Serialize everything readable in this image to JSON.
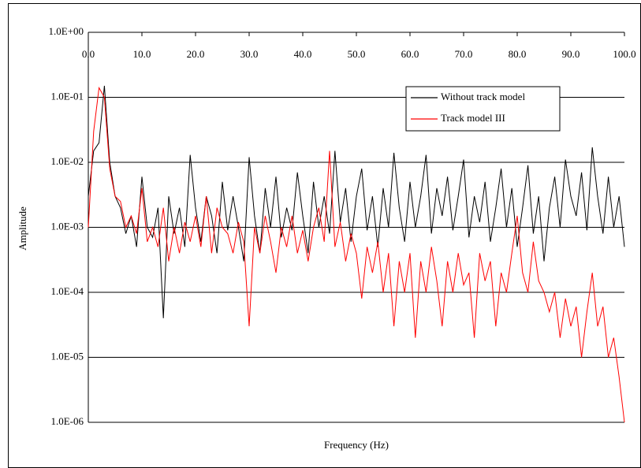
{
  "chart_data": {
    "type": "line",
    "x_label": "Frequency (Hz)",
    "y_label": "Amplitude",
    "y_scale": "log",
    "grid": true,
    "legend": "upper right",
    "xlim": [
      0,
      100
    ],
    "xticks": [
      {
        "value": 0,
        "label": "0.0"
      },
      {
        "value": 10,
        "label": "10.0"
      },
      {
        "value": 20,
        "label": "20.0"
      },
      {
        "value": 30,
        "label": "30.0"
      },
      {
        "value": 40,
        "label": "40.0"
      },
      {
        "value": 50,
        "label": "50.0"
      },
      {
        "value": 60,
        "label": "60.0"
      },
      {
        "value": 70,
        "label": "70.0"
      },
      {
        "value": 80,
        "label": "80.0"
      },
      {
        "value": 90,
        "label": "90.0"
      },
      {
        "value": 100,
        "label": "100.0"
      }
    ],
    "ylim": [
      1e-06,
      1
    ],
    "yticks": [
      {
        "value": 1,
        "label": "1.0E+00"
      },
      {
        "value": 0.1,
        "label": "1.0E-01"
      },
      {
        "value": 0.01,
        "label": "1.0E-02"
      },
      {
        "value": 0.001,
        "label": "1.0E-03"
      },
      {
        "value": 0.0001,
        "label": "1.0E-04"
      },
      {
        "value": 1e-05,
        "label": "1.0E-05"
      },
      {
        "value": 1e-06,
        "label": "1.0E-06"
      }
    ],
    "x": [
      0,
      1,
      2,
      3,
      4,
      5,
      6,
      7,
      8,
      9,
      10,
      11,
      12,
      13,
      14,
      15,
      16,
      17,
      18,
      19,
      20,
      21,
      22,
      23,
      24,
      25,
      26,
      27,
      28,
      29,
      30,
      31,
      32,
      33,
      34,
      35,
      36,
      37,
      38,
      39,
      40,
      41,
      42,
      43,
      44,
      45,
      46,
      47,
      48,
      49,
      50,
      51,
      52,
      53,
      54,
      55,
      56,
      57,
      58,
      59,
      60,
      61,
      62,
      63,
      64,
      65,
      66,
      67,
      68,
      69,
      70,
      71,
      72,
      73,
      74,
      75,
      76,
      77,
      78,
      79,
      80,
      81,
      82,
      83,
      84,
      85,
      86,
      87,
      88,
      89,
      90,
      91,
      92,
      93,
      94,
      95,
      96,
      97,
      98,
      99,
      100
    ],
    "series": [
      {
        "name": "Without track model",
        "color": "#000000",
        "values": [
          0.003,
          0.015,
          0.02,
          0.15,
          0.01,
          0.003,
          0.002,
          0.0008,
          0.0015,
          0.0005,
          0.006,
          0.001,
          0.0007,
          0.002,
          4e-05,
          0.003,
          0.0008,
          0.002,
          0.0005,
          0.013,
          0.002,
          0.0006,
          0.003,
          0.0015,
          0.0004,
          0.005,
          0.0009,
          0.003,
          0.001,
          0.0003,
          0.012,
          0.0015,
          0.0004,
          0.004,
          0.001,
          0.006,
          0.0007,
          0.002,
          0.0009,
          0.007,
          0.0015,
          0.0004,
          0.005,
          0.001,
          0.003,
          0.0008,
          0.015,
          0.0012,
          0.004,
          0.0006,
          0.003,
          0.008,
          0.0009,
          0.003,
          0.0005,
          0.004,
          0.001,
          0.014,
          0.002,
          0.0006,
          0.005,
          0.001,
          0.003,
          0.013,
          0.0008,
          0.004,
          0.0015,
          0.006,
          0.0009,
          0.003,
          0.011,
          0.0007,
          0.003,
          0.0012,
          0.005,
          0.0006,
          0.002,
          0.008,
          0.001,
          0.004,
          0.0005,
          0.002,
          0.009,
          0.0008,
          0.003,
          0.0003,
          0.002,
          0.006,
          0.001,
          0.011,
          0.003,
          0.0015,
          0.007,
          0.0009,
          0.017,
          0.003,
          0.0008,
          0.006,
          0.001,
          0.003,
          0.0005
        ]
      },
      {
        "name": "Track model III",
        "color": "#ff0000",
        "values": [
          0.001,
          0.03,
          0.14,
          0.1,
          0.008,
          0.003,
          0.0025,
          0.001,
          0.0015,
          0.0008,
          0.004,
          0.0006,
          0.001,
          0.0005,
          0.002,
          0.0003,
          0.001,
          0.0004,
          0.0012,
          0.0006,
          0.0015,
          0.0005,
          0.003,
          0.0004,
          0.002,
          0.001,
          0.0008,
          0.0004,
          0.0012,
          0.0006,
          3e-05,
          0.001,
          0.0004,
          0.0015,
          0.0006,
          0.0002,
          0.001,
          0.0005,
          0.0015,
          0.0004,
          0.0009,
          0.0003,
          0.001,
          0.002,
          0.0006,
          0.015,
          0.0005,
          0.0012,
          0.0003,
          0.0008,
          0.0004,
          8e-05,
          0.0005,
          0.0002,
          0.0006,
          0.0001,
          0.0004,
          3e-05,
          0.0003,
          0.0001,
          0.0004,
          2e-05,
          0.0003,
          0.0001,
          0.0005,
          0.00015,
          3e-05,
          0.0003,
          0.0001,
          0.0004,
          0.00013,
          0.0002,
          2e-05,
          0.0004,
          0.00015,
          0.0003,
          3e-05,
          0.0002,
          0.0001,
          0.0004,
          0.0015,
          0.0002,
          0.0001,
          0.0006,
          0.00015,
          0.0001,
          5e-05,
          0.0001,
          2e-05,
          8e-05,
          3e-05,
          6e-05,
          1e-05,
          5e-05,
          0.0002,
          3e-05,
          6e-05,
          1e-05,
          2e-05,
          5e-06,
          1e-06
        ]
      }
    ]
  }
}
